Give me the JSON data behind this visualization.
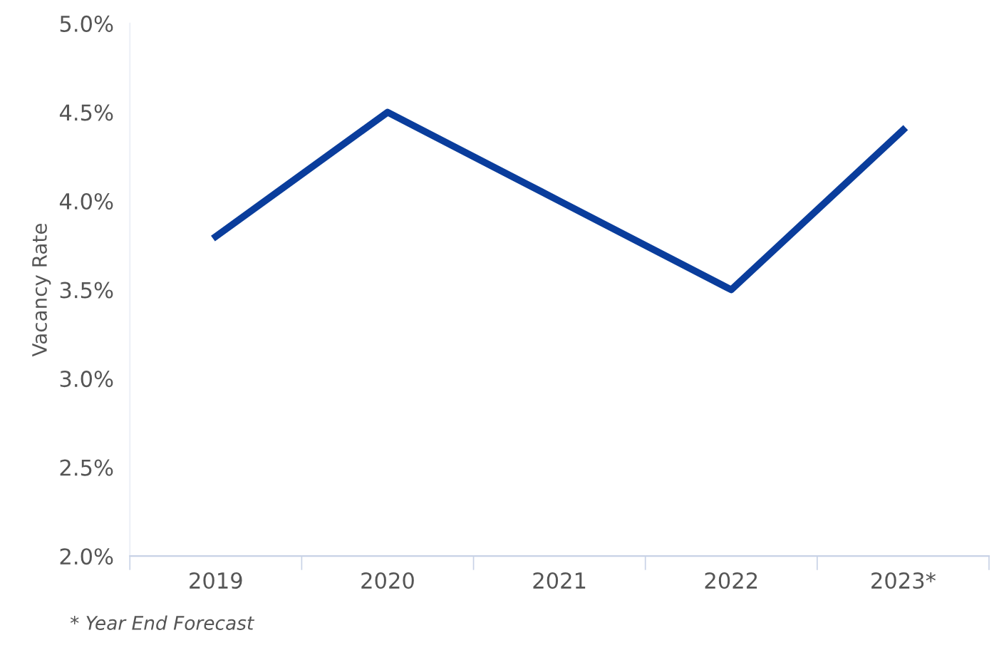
{
  "chart_data": {
    "type": "line",
    "ylabel": "Vacancy Rate",
    "categories": [
      "2019",
      "2020",
      "2021",
      "2022",
      "2023*"
    ],
    "series": [
      {
        "color": "#0a3d9c",
        "values": [
          3.8,
          4.5,
          4.0,
          3.5,
          4.4
        ]
      }
    ],
    "ylim": [
      2.0,
      5.0
    ],
    "yticks": [
      {
        "value": 2.0,
        "label": "2.0%"
      },
      {
        "value": 2.5,
        "label": "2.5%"
      },
      {
        "value": 3.0,
        "label": "3.0%"
      },
      {
        "value": 3.5,
        "label": "3.5%"
      },
      {
        "value": 4.0,
        "label": "4.0%"
      },
      {
        "value": 4.5,
        "label": "4.5%"
      },
      {
        "value": 5.0,
        "label": "5.0%"
      }
    ],
    "grid": false,
    "legend": false,
    "marker": "none",
    "line_style": "solid",
    "annotations": [
      "* Year End Forecast"
    ]
  }
}
